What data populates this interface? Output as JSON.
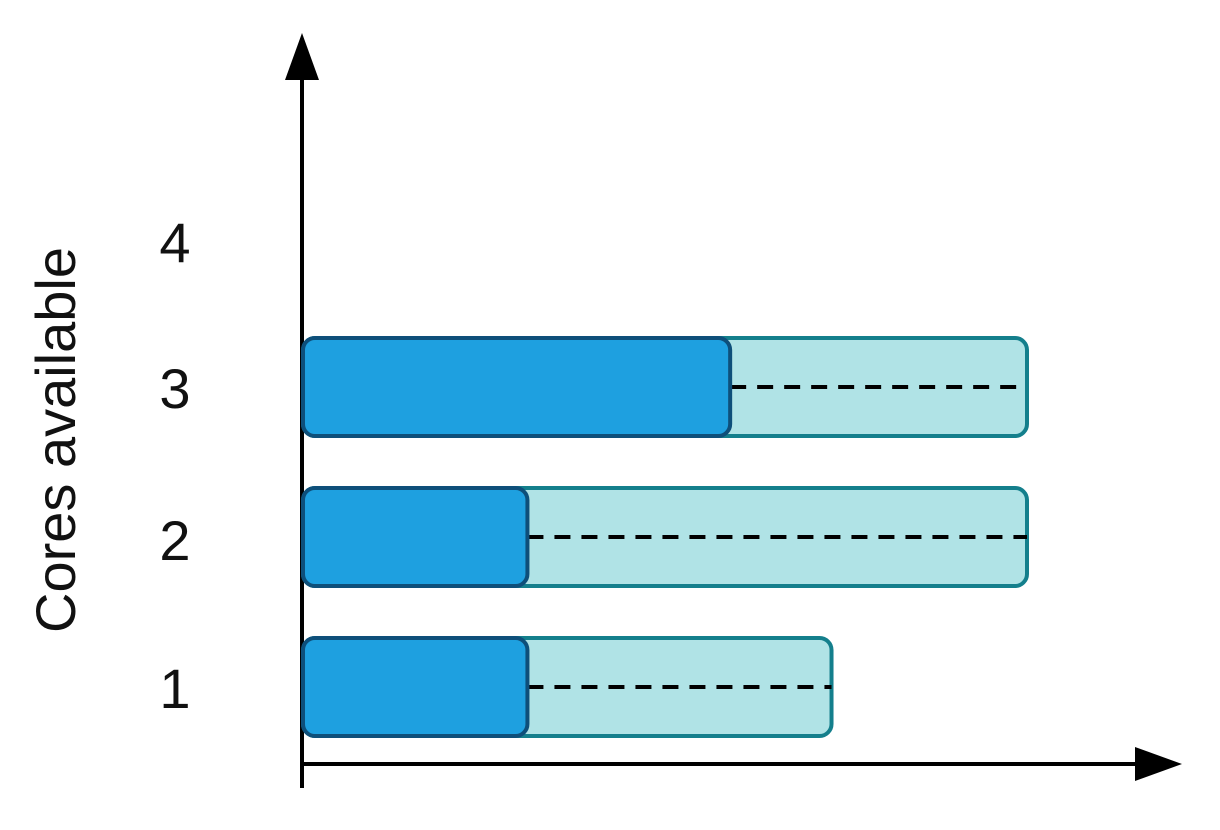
{
  "diagram": {
    "ylabel": "Cores available",
    "rows": [
      {
        "label": "1",
        "busy": 0.31,
        "reserved": 0.73
      },
      {
        "label": "2",
        "busy": 0.31,
        "reserved": 1.0
      },
      {
        "label": "3",
        "busy": 0.59,
        "reserved": 1.0
      },
      {
        "label": "4",
        "busy": null,
        "reserved": null
      }
    ]
  },
  "colors": {
    "busy_fill": "#1ea0e0",
    "busy_stroke": "#0e4f7a",
    "reserved_fill": "#b0e3e6",
    "reserved_stroke": "#147f8c",
    "axis": "#000000"
  }
}
